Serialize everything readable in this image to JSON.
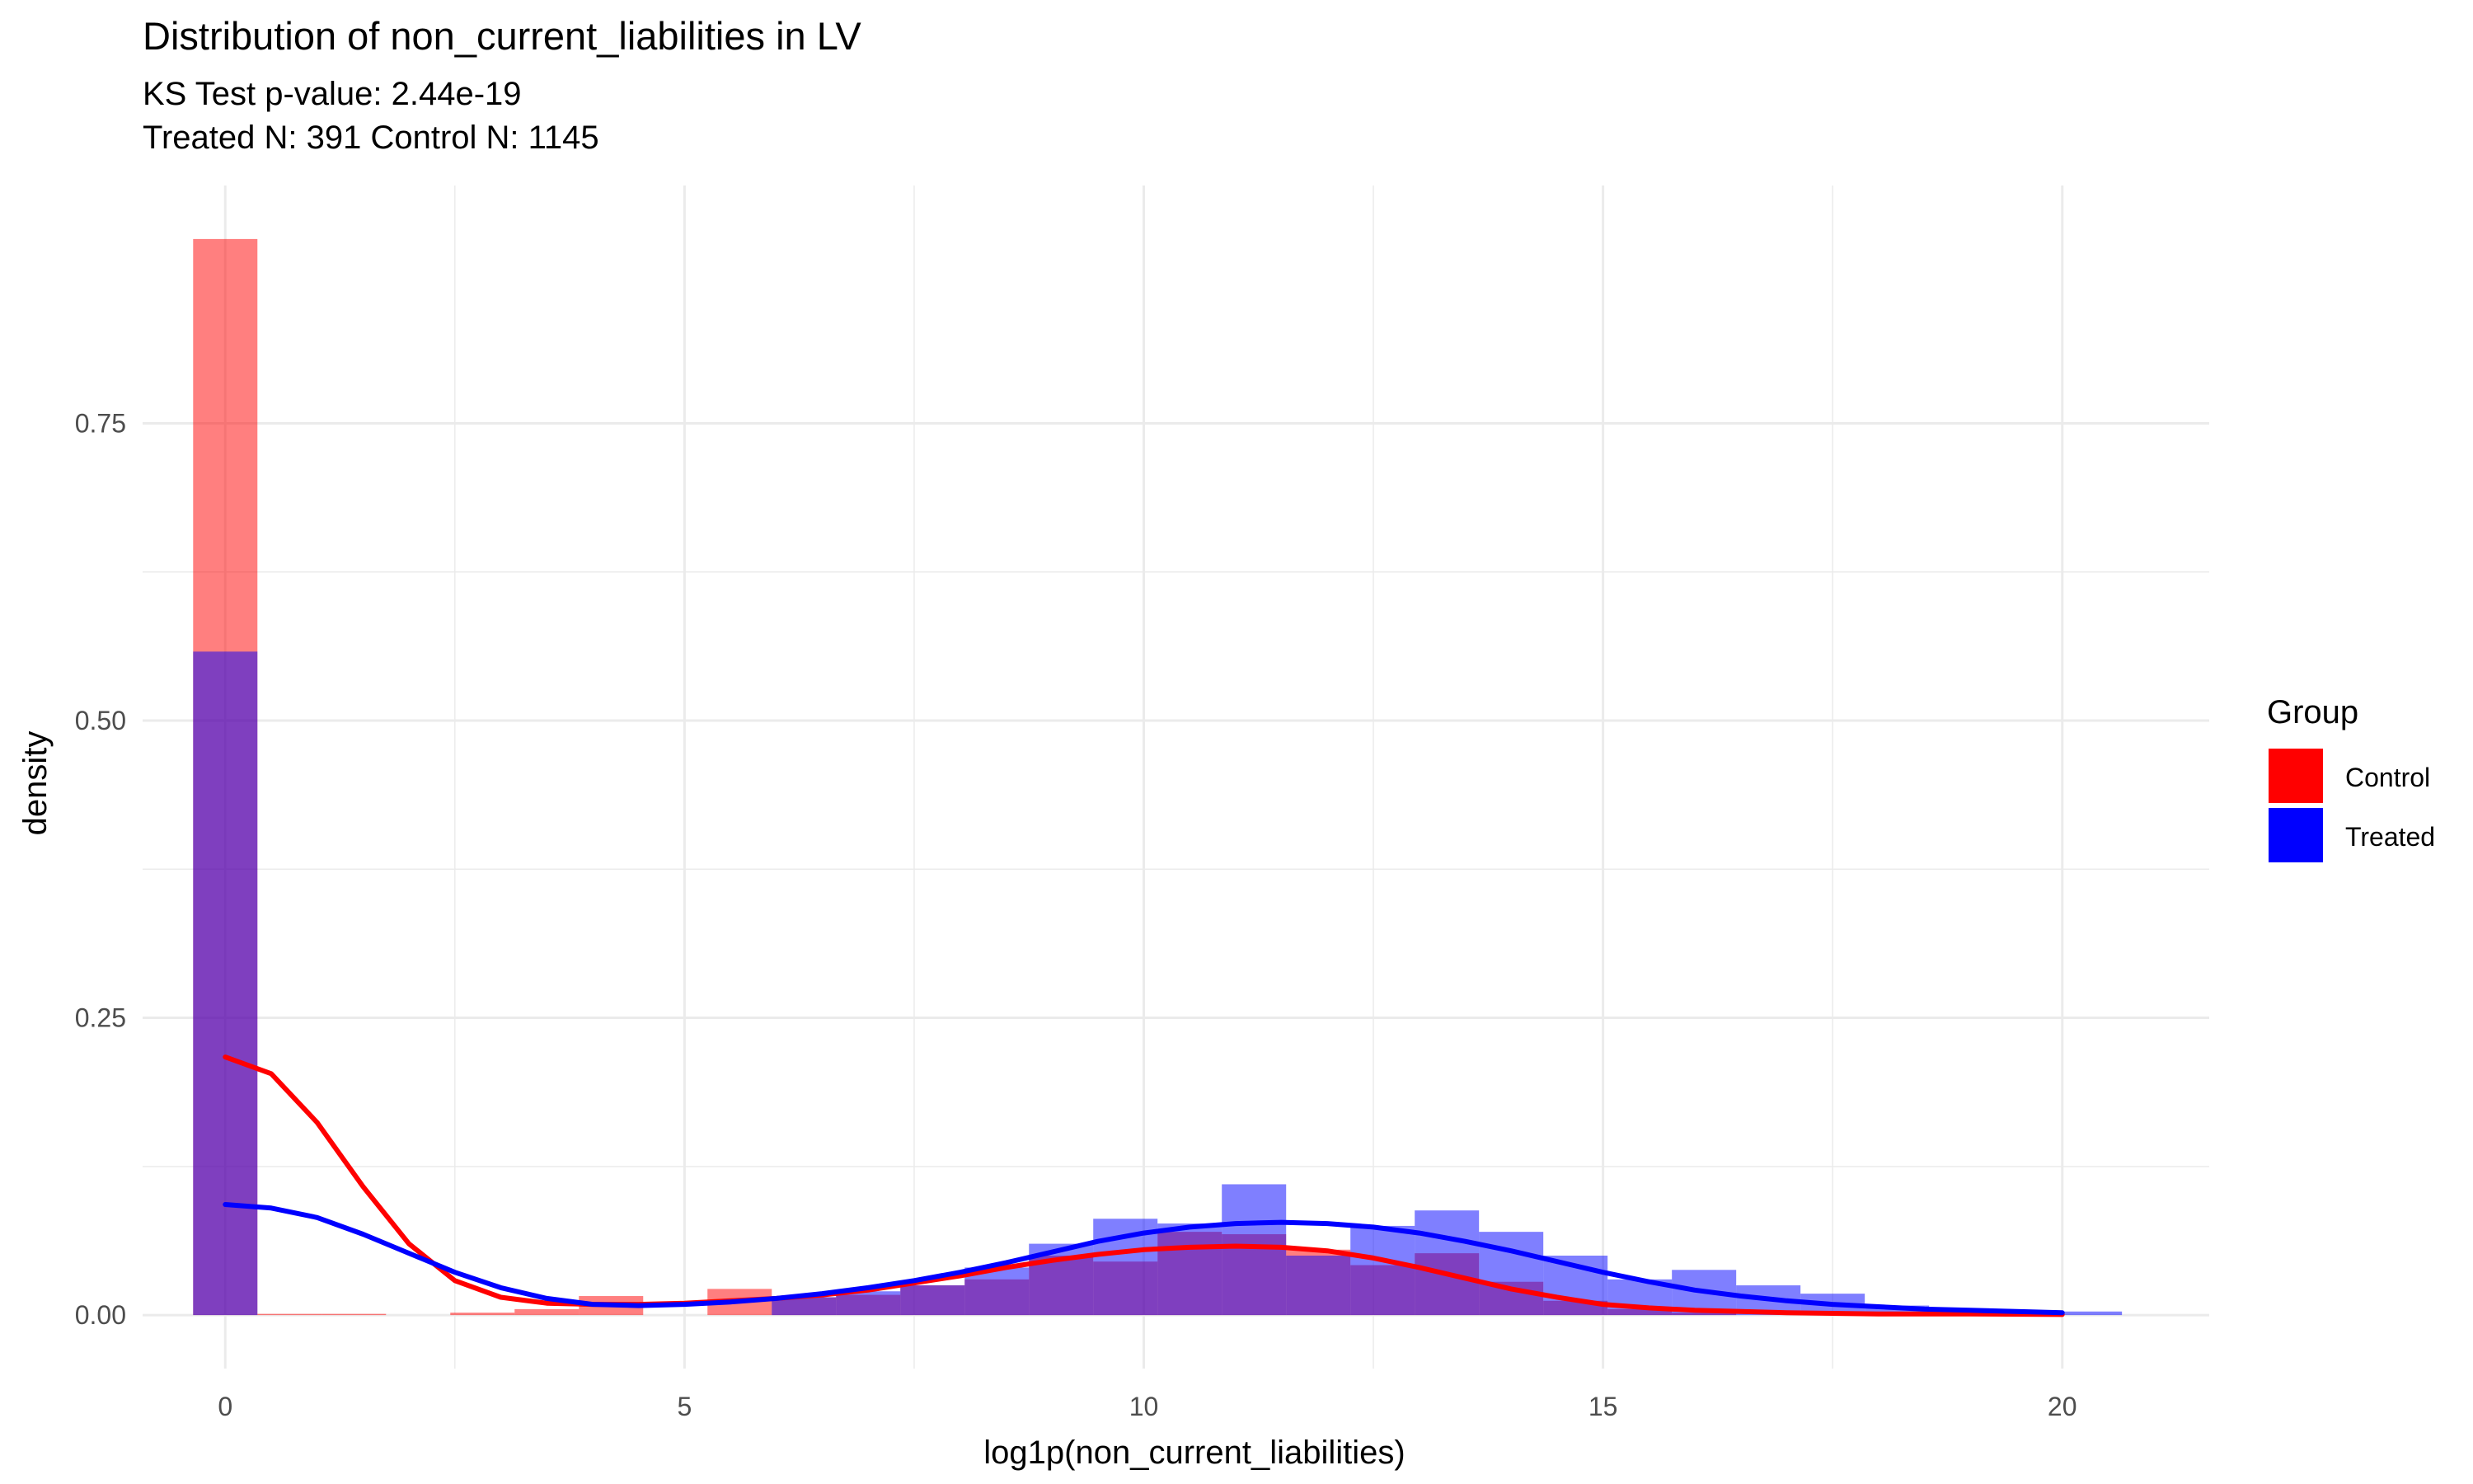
{
  "chart_data": {
    "type": "histogram-density",
    "title": "Distribution of non_current_liabilities in LV",
    "subtitle_lines": [
      "KS Test p-value: 2.44e-19",
      "Treated N: 391 Control N: 1145"
    ],
    "xlabel": "log1p(non_current_liabilities)",
    "ylabel": "density",
    "xlim": [
      -0.9,
      21.6
    ],
    "ylim": [
      -0.045,
      0.95
    ],
    "x_ticks": [
      0,
      5,
      10,
      15,
      20
    ],
    "x_tick_labels": [
      "0",
      "5",
      "10",
      "15",
      "20"
    ],
    "y_ticks": [
      0,
      0.25,
      0.5,
      0.75
    ],
    "y_tick_labels": [
      "0.00",
      "0.25",
      "0.50",
      "0.75"
    ],
    "grid": true,
    "legend": {
      "title": "Group",
      "position": "right"
    },
    "bin_width": 0.7,
    "series": [
      {
        "name": "Control",
        "color": "#ff0000",
        "histogram": {
          "bin_centers": [
            0,
            0.7,
            1.4,
            2.8,
            3.5,
            4.2,
            5.6,
            6.3,
            7.0,
            7.7,
            8.4,
            9.1,
            9.8,
            10.5,
            11.2,
            11.9,
            12.6,
            13.3,
            14.0,
            14.7,
            15.4,
            16.1
          ],
          "densities": [
            0.905,
            0.001,
            0.001,
            0.002,
            0.005,
            0.016,
            0.022,
            0.015,
            0.017,
            0.025,
            0.03,
            0.05,
            0.045,
            0.07,
            0.068,
            0.055,
            0.042,
            0.052,
            0.028,
            0.012,
            0.005,
            0.002
          ]
        },
        "density_curve": {
          "x": [
            0,
            0.5,
            1.0,
            1.5,
            2.0,
            2.5,
            3.0,
            3.5,
            4.0,
            4.5,
            5.0,
            5.5,
            6.0,
            6.5,
            7.0,
            7.5,
            8.0,
            8.5,
            9.0,
            9.5,
            10.0,
            10.5,
            11.0,
            11.5,
            12.0,
            12.5,
            13.0,
            13.5,
            14.0,
            14.5,
            15.0,
            15.5,
            16.0,
            17.0,
            18.0,
            19.0,
            20.0
          ],
          "y": [
            0.217,
            0.203,
            0.162,
            0.108,
            0.06,
            0.029,
            0.015,
            0.01,
            0.009,
            0.009,
            0.01,
            0.012,
            0.014,
            0.017,
            0.021,
            0.027,
            0.033,
            0.04,
            0.046,
            0.051,
            0.055,
            0.057,
            0.058,
            0.057,
            0.054,
            0.048,
            0.04,
            0.031,
            0.022,
            0.015,
            0.009,
            0.006,
            0.004,
            0.002,
            0.001,
            0.001,
            0.0005
          ]
        }
      },
      {
        "name": "Treated",
        "color": "#0000ff",
        "histogram": {
          "bin_centers": [
            0,
            6.3,
            7.0,
            7.7,
            8.4,
            9.1,
            9.8,
            10.5,
            11.2,
            11.9,
            12.6,
            13.3,
            14.0,
            14.7,
            15.4,
            16.1,
            16.8,
            17.5,
            18.2,
            18.9,
            19.6,
            20.3
          ],
          "densities": [
            0.558,
            0.015,
            0.02,
            0.025,
            0.04,
            0.06,
            0.081,
            0.077,
            0.11,
            0.05,
            0.075,
            0.088,
            0.07,
            0.05,
            0.03,
            0.038,
            0.025,
            0.018,
            0.008,
            0.005,
            0.004,
            0.003
          ]
        },
        "density_curve": {
          "x": [
            0,
            0.5,
            1.0,
            1.5,
            2.0,
            2.5,
            3.0,
            3.5,
            4.0,
            4.5,
            5.0,
            5.5,
            6.0,
            6.5,
            7.0,
            7.5,
            8.0,
            8.5,
            9.0,
            9.5,
            10.0,
            10.5,
            11.0,
            11.5,
            12.0,
            12.5,
            13.0,
            13.5,
            14.0,
            14.5,
            15.0,
            15.5,
            16.0,
            16.5,
            17.0,
            17.5,
            18.0,
            18.5,
            19.0,
            19.5,
            20.0
          ],
          "y": [
            0.093,
            0.09,
            0.082,
            0.068,
            0.052,
            0.036,
            0.023,
            0.014,
            0.009,
            0.008,
            0.009,
            0.011,
            0.014,
            0.018,
            0.023,
            0.029,
            0.036,
            0.044,
            0.053,
            0.062,
            0.069,
            0.074,
            0.077,
            0.078,
            0.077,
            0.074,
            0.069,
            0.062,
            0.054,
            0.045,
            0.036,
            0.028,
            0.021,
            0.016,
            0.012,
            0.009,
            0.007,
            0.005,
            0.004,
            0.003,
            0.002
          ]
        }
      }
    ]
  }
}
